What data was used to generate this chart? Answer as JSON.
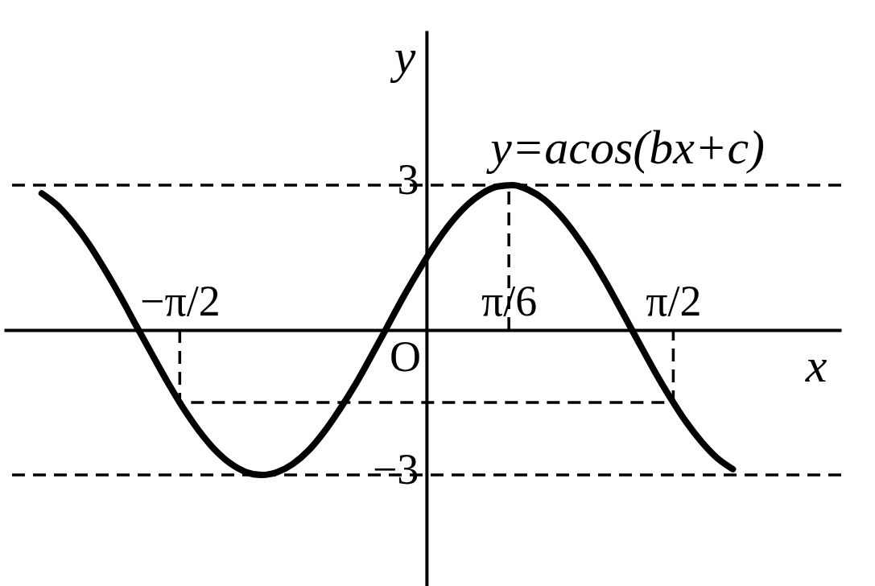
{
  "chart_data": {
    "type": "line",
    "xlabel": "x",
    "ylabel": "y",
    "xlim": [
      -2.69,
      2.64
    ],
    "ylim": [
      -5.3,
      6.2
    ],
    "xticks": [
      {
        "value": -1.571,
        "label": "−π/2"
      },
      {
        "value": 0.524,
        "label": "π/6"
      },
      {
        "value": 1.571,
        "label": "π/2"
      }
    ],
    "yticks": [
      3,
      {
        "value": -3,
        "label": "−3"
      }
    ],
    "grid": false,
    "annotations": [
      "O"
    ],
    "series": [
      {
        "name": "y=acos(bx+c)",
        "color": "#000000",
        "line_style": "solid",
        "x": [
          -2.45,
          -2.35,
          -2.25,
          -2.15,
          -2.05,
          -1.95,
          -1.85,
          -1.75,
          -1.65,
          -1.55,
          -1.45,
          -1.35,
          -1.25,
          -1.15,
          -1.05,
          -0.95,
          -0.85,
          -0.75,
          -0.65,
          -0.55,
          -0.45,
          -0.35,
          -0.25,
          -0.15,
          -0.05,
          0.05,
          0.15,
          0.25,
          0.35,
          0.45,
          0.55,
          0.65,
          0.75,
          0.85,
          0.95,
          1.05,
          1.15,
          1.25,
          1.35,
          1.45,
          1.55,
          1.65,
          1.75,
          1.85,
          1.95
        ],
        "values": [
          2.83,
          2.58,
          2.22,
          1.78,
          1.26,
          0.7,
          0.1,
          -0.49,
          -1.07,
          -1.61,
          -2.08,
          -2.47,
          -2.76,
          -2.94,
          -3.0,
          -2.94,
          -2.77,
          -2.49,
          -2.1,
          -1.63,
          -1.11,
          -0.53,
          0.07,
          0.67,
          1.23,
          1.75,
          2.2,
          2.56,
          2.82,
          2.97,
          3.0,
          2.9,
          2.7,
          2.38,
          1.97,
          1.49,
          0.94,
          0.35,
          -0.25,
          -0.84,
          -1.39,
          -1.89,
          -2.31,
          -2.65,
          -2.88
        ]
      },
      {
        "color": "#000000",
        "line_style": "dashed",
        "x": [
          -1.571,
          -1.571,
          1.571,
          1.571
        ],
        "values": [
          0,
          -1.5,
          -1.5,
          0
        ]
      },
      {
        "color": "#000000",
        "line_style": "dashed",
        "x": [
          0.524,
          0.524
        ],
        "values": [
          0,
          3
        ]
      }
    ],
    "ref_lines": [
      {
        "axis": "y",
        "value": 3,
        "color": "#000000",
        "line_style": "dashed"
      },
      {
        "axis": "y",
        "value": -3,
        "color": "#000000",
        "line_style": "dashed"
      }
    ]
  }
}
